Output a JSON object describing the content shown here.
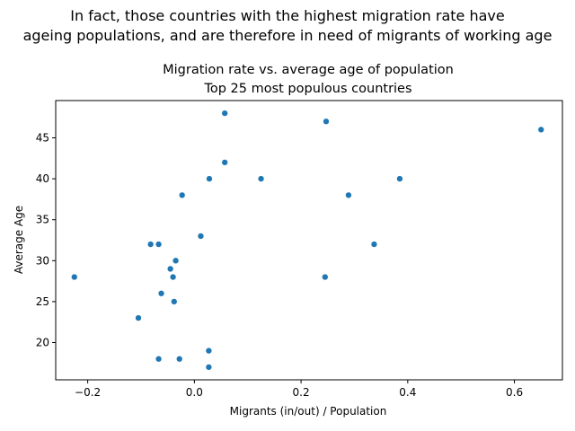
{
  "chart_data": {
    "type": "scatter",
    "suptitle_lines": [
      "In fact, those countries with the highest migration rate have",
      "ageing populations, and are therefore in need of migrants of working age"
    ],
    "title_lines": [
      "Migration rate vs. average age of population",
      "Top 25 most populous countries"
    ],
    "xlabel": "Migrants (in/out) / Population",
    "ylabel": "Average Age",
    "xlim": [
      -0.26,
      0.69
    ],
    "ylim": [
      15.45,
      49.55
    ],
    "xticks": [
      -0.2,
      0.0,
      0.2,
      0.4,
      0.6
    ],
    "xtick_labels": [
      "−0.2",
      "0.0",
      "0.2",
      "0.4",
      "0.6"
    ],
    "yticks": [
      20,
      25,
      30,
      35,
      40,
      45
    ],
    "ytick_labels": [
      "20",
      "25",
      "30",
      "35",
      "40",
      "45"
    ],
    "grid": false,
    "marker_color": "#1f77b4",
    "x": [
      0.057,
      0.247,
      0.65,
      0.057,
      0.028,
      0.125,
      0.385,
      -0.023,
      0.289,
      0.012,
      0.337,
      -0.082,
      -0.067,
      -0.035,
      -0.045,
      -0.04,
      0.245,
      -0.225,
      -0.062,
      -0.038,
      -0.105,
      0.027,
      -0.067,
      -0.028,
      0.027
    ],
    "y": [
      48,
      47,
      46,
      42,
      40,
      40,
      40,
      38,
      38,
      33,
      32,
      32,
      32,
      30,
      29,
      28,
      28,
      28,
      26,
      25,
      23,
      19,
      18,
      18,
      17
    ]
  }
}
